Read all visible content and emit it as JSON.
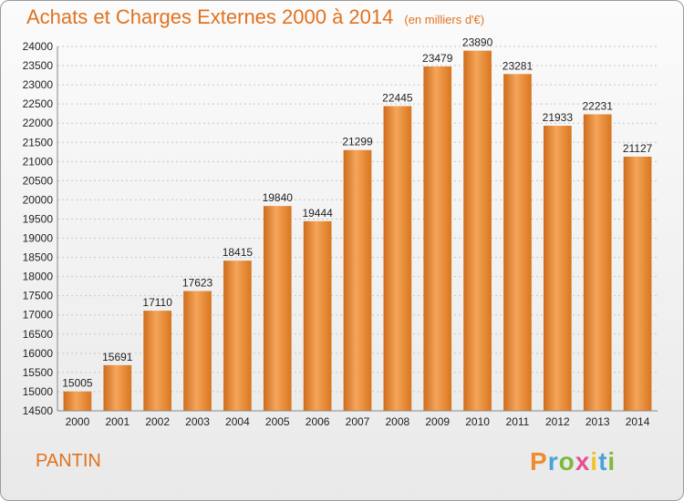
{
  "header": {
    "title": "Achats et Charges Externes 2000 à 2014",
    "unit": "(en milliers d'€)"
  },
  "footer": {
    "city": "PANTIN",
    "logo_text": "Proxiti"
  },
  "colors": {
    "accent": "#e0721f",
    "bar_light": "#f5a55a",
    "bar_dark": "#cf6c1c"
  },
  "chart_data": {
    "type": "bar",
    "categories": [
      "2000",
      "2001",
      "2002",
      "2003",
      "2004",
      "2005",
      "2006",
      "2007",
      "2008",
      "2009",
      "2010",
      "2011",
      "2012",
      "2013",
      "2014"
    ],
    "values": [
      15005,
      15691,
      17110,
      17623,
      18415,
      19840,
      19444,
      21299,
      22445,
      23479,
      23890,
      23281,
      21933,
      22231,
      21127
    ],
    "title": "Achats et Charges Externes 2000 à 2014",
    "xlabel": "",
    "ylabel": "",
    "ylim": [
      14500,
      24000
    ],
    "yticks": [
      14500,
      15000,
      15500,
      16000,
      16500,
      17000,
      17500,
      18000,
      18500,
      19000,
      19500,
      20000,
      20500,
      21000,
      21500,
      22000,
      22500,
      23000,
      23500,
      24000
    ],
    "grid": true,
    "legend": "none"
  }
}
